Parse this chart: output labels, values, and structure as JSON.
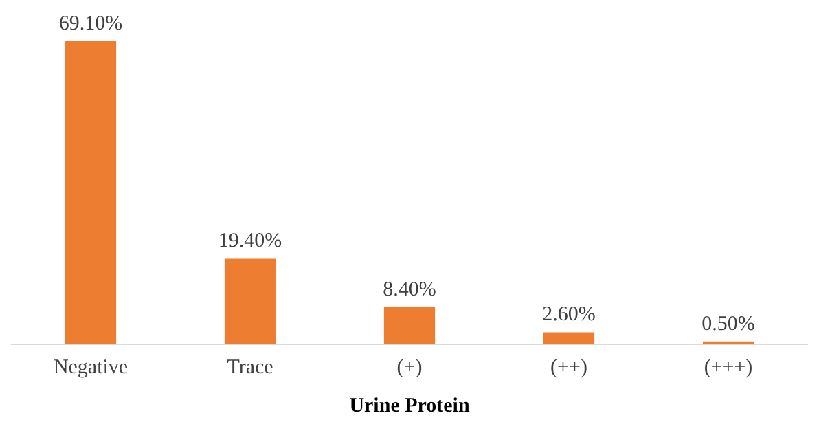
{
  "chart_data": {
    "type": "bar",
    "xlabel": "Urine Protein",
    "categories": [
      "Negative",
      "Trace",
      "(+)",
      "(++)",
      "(+++)"
    ],
    "values": [
      69.1,
      19.4,
      8.4,
      2.6,
      0.5
    ],
    "value_labels": [
      "69.10%",
      "19.40%",
      "8.40%",
      "2.60%",
      "0.50%"
    ],
    "color": "#ed7d31",
    "tick_labels": "x",
    "grid": false
  }
}
